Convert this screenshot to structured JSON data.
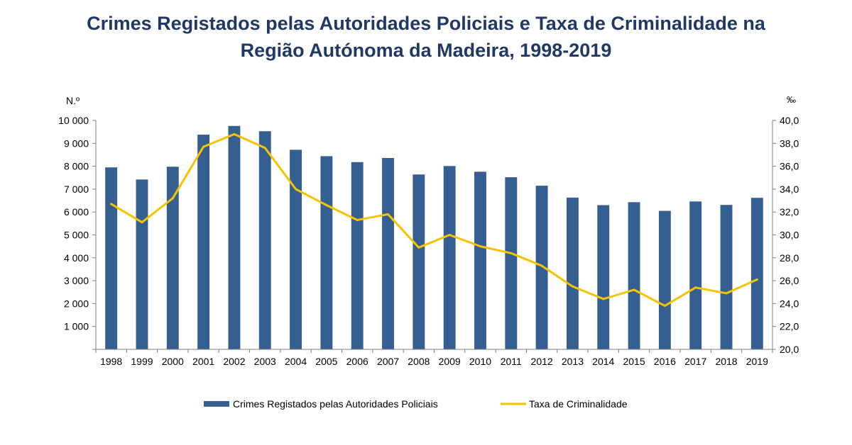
{
  "title_line1": "Crimes Registados pelas Autoridades Policiais e Taxa de Criminalidade na",
  "title_line2": "Região Autónoma da Madeira, 1998-2019",
  "chart_data": {
    "type": "bar",
    "categories": [
      "1998",
      "1999",
      "2000",
      "2001",
      "2002",
      "2003",
      "2004",
      "2005",
      "2006",
      "2007",
      "2008",
      "2009",
      "2010",
      "2011",
      "2012",
      "2013",
      "2014",
      "2015",
      "2016",
      "2017",
      "2018",
      "2019"
    ],
    "series": [
      {
        "name": "Crimes Registados pelas Autoridades Policiais",
        "type": "bar",
        "axis": "left",
        "color": "#365f91",
        "values": [
          7950,
          7420,
          7980,
          9380,
          9760,
          9530,
          8720,
          8440,
          8180,
          8360,
          7640,
          8010,
          7760,
          7520,
          7150,
          6630,
          6300,
          6430,
          6050,
          6460,
          6310,
          6620
        ]
      },
      {
        "name": "Taxa de Criminalidade",
        "type": "line",
        "axis": "right",
        "color": "#f5c400",
        "values": [
          32.7,
          31.1,
          33.2,
          37.7,
          38.8,
          37.6,
          34.0,
          32.6,
          31.3,
          31.8,
          28.9,
          30.0,
          29.0,
          28.4,
          27.3,
          25.5,
          24.4,
          25.2,
          23.8,
          25.4,
          24.9,
          26.1
        ]
      }
    ],
    "y_left": {
      "label": "N.º",
      "ylim": [
        0,
        10000
      ],
      "ticks": [
        "1 000",
        "2 000",
        "3 000",
        "4 000",
        "5 000",
        "6 000",
        "7 000",
        "8 000",
        "9 000",
        "10 000"
      ]
    },
    "y_right": {
      "label": "‰",
      "ylim": [
        20,
        40
      ],
      "ticks": [
        "20,0",
        "22,0",
        "24,0",
        "26,0",
        "28,0",
        "30,0",
        "32,0",
        "34,0",
        "36,0",
        "38,0",
        "40,0"
      ]
    },
    "grid": false,
    "legend_position": "bottom"
  }
}
